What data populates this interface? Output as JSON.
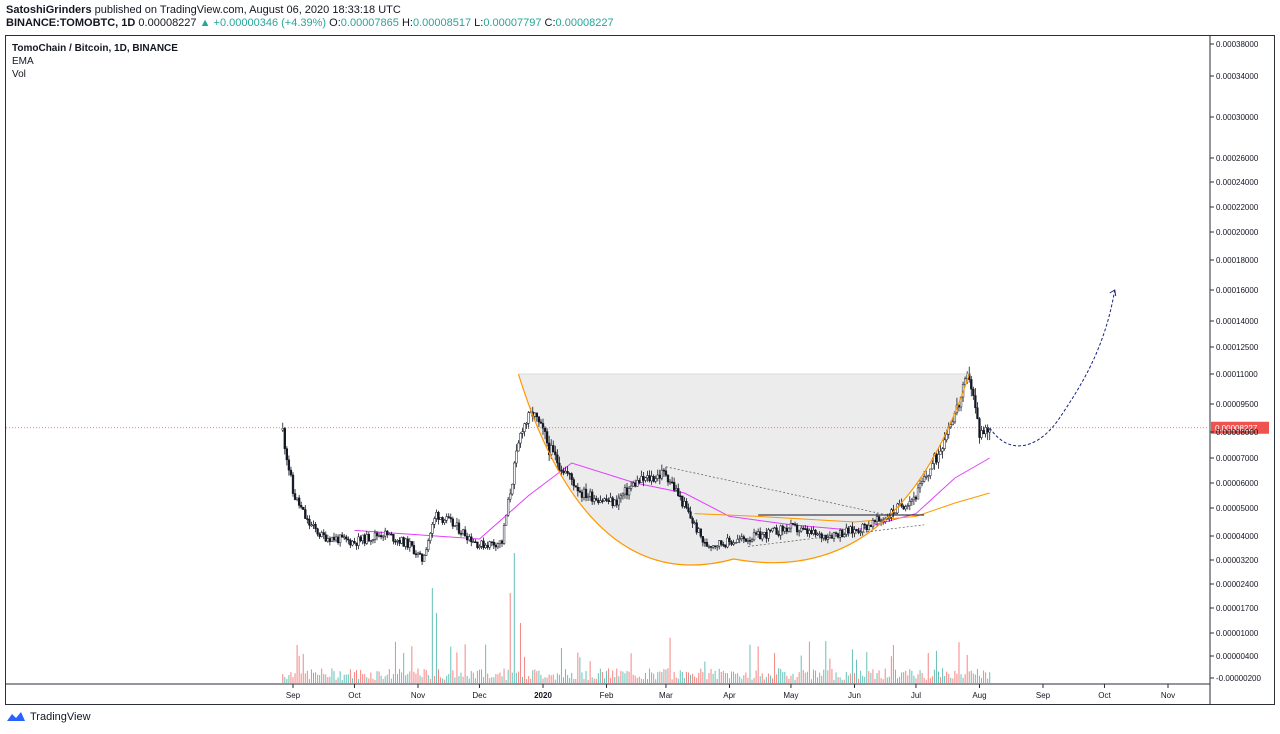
{
  "header": {
    "author": "SatoshiGrinders",
    "published_text": "published on TradingView.com, August 06, 2020 18:33:18 UTC",
    "symbol": "BINANCE:TOMOBTC, 1D",
    "last": "0.00008227",
    "change": "▲ +0.00000346 (+4.39%)",
    "o_label": "O:",
    "o": "0.00007865",
    "h_label": "H:",
    "h": "0.00008517",
    "l_label": "L:",
    "l": "0.00007797",
    "c_label": "C:",
    "c": "0.00008227"
  },
  "legend": {
    "title": "TomoChain / Bitcoin, 1D, BINANCE",
    "ema": "EMA",
    "vol": "Vol"
  },
  "brand": {
    "name": "TradingView"
  },
  "colors": {
    "up": "#26a69a",
    "down": "#ef5350",
    "candle": "#131722",
    "ema_fast": "#e040fb",
    "ema_slow": "#ff9800",
    "cup": "#ff9800",
    "projection": "#1a237e",
    "price_line": "#ef5350",
    "shade": "#ececec"
  },
  "chart_data": {
    "type": "candlestick",
    "symbol": "TOMOBTC",
    "timeframe": "1D",
    "log_scale": true,
    "current_price": 8.227e-05,
    "current_price_label": "0.00008227",
    "y_ticks": [
      "0.00038000",
      "0.00034000",
      "0.00030000",
      "0.00026000",
      "0.00024000",
      "0.00022000",
      "0.00020000",
      "0.00018000",
      "0.00016000",
      "0.00014000",
      "0.00012500",
      "0.00011000",
      "0.00009500",
      "0.00008000",
      "0.00007000",
      "0.00006000",
      "0.00005000",
      "0.00004000",
      "0.00003200",
      "0.00002400",
      "0.00001700",
      "0.00001000",
      "0.00000400",
      "-0.00000200"
    ],
    "x_ticks": [
      "Sep",
      "Oct",
      "Nov",
      "Dec",
      "2020",
      "Feb",
      "Mar",
      "Apr",
      "May",
      "Jun",
      "Jul",
      "Aug",
      "Sep",
      "Oct",
      "Nov"
    ],
    "price_path": [
      [
        "2019-08-27",
        8.1e-05
      ],
      [
        "2019-09-01",
        5.6e-05
      ],
      [
        "2019-09-08",
        4.5e-05
      ],
      [
        "2019-09-15",
        4e-05
      ],
      [
        "2019-10-01",
        3.8e-05
      ],
      [
        "2019-10-15",
        4.1e-05
      ],
      [
        "2019-10-28",
        3.7e-05
      ],
      [
        "2019-11-03",
        3.2e-05
      ],
      [
        "2019-11-10",
        4.8e-05
      ],
      [
        "2019-11-20",
        4.3e-05
      ],
      [
        "2019-12-01",
        3.7e-05
      ],
      [
        "2019-12-12",
        3.8e-05
      ],
      [
        "2019-12-18",
        6.6e-05
      ],
      [
        "2019-12-22",
        8.3e-05
      ],
      [
        "2019-12-27",
        9e-05
      ],
      [
        "2020-01-05",
        7.2e-05
      ],
      [
        "2020-01-20",
        5.6e-05
      ],
      [
        "2020-02-05",
        5.2e-05
      ],
      [
        "2020-02-15",
        6e-05
      ],
      [
        "2020-03-01",
        6.4e-05
      ],
      [
        "2020-03-12",
        4.8e-05
      ],
      [
        "2020-03-20",
        3.7e-05
      ],
      [
        "2020-04-01",
        3.8e-05
      ],
      [
        "2020-04-15",
        4e-05
      ],
      [
        "2020-05-01",
        4.3e-05
      ],
      [
        "2020-05-15",
        4e-05
      ],
      [
        "2020-06-01",
        4.2e-05
      ],
      [
        "2020-06-15",
        4.6e-05
      ],
      [
        "2020-07-01",
        5.5e-05
      ],
      [
        "2020-07-12",
        7.2e-05
      ],
      [
        "2020-07-22",
        9.5e-05
      ],
      [
        "2020-07-27",
        0.00011
      ],
      [
        "2020-08-01",
        8e-05
      ],
      [
        "2020-08-06",
        8.23e-05
      ]
    ],
    "ema_fast": [
      [
        "2019-10-01",
        4.2e-05
      ],
      [
        "2019-12-01",
        3.9e-05
      ],
      [
        "2019-12-25",
        5.5e-05
      ],
      [
        "2020-01-15",
        6.8e-05
      ],
      [
        "2020-02-15",
        6e-05
      ],
      [
        "2020-03-10",
        5.6e-05
      ],
      [
        "2020-04-01",
        4.7e-05
      ],
      [
        "2020-05-01",
        4.4e-05
      ],
      [
        "2020-06-01",
        4.2e-05
      ],
      [
        "2020-07-01",
        4.8e-05
      ],
      [
        "2020-07-20",
        6.2e-05
      ],
      [
        "2020-08-06",
        7e-05
      ]
    ],
    "ema_slow": [
      [
        "2020-03-15",
        4.8e-05
      ],
      [
        "2020-04-15",
        4.7e-05
      ],
      [
        "2020-06-01",
        4.5e-05
      ],
      [
        "2020-07-01",
        4.7e-05
      ],
      [
        "2020-07-20",
        5.2e-05
      ],
      [
        "2020-08-06",
        5.6e-05
      ]
    ],
    "annotations": {
      "cup_rim_price": 0.00011,
      "cup_from": "2019-12-20",
      "cup_to": "2020-07-27",
      "projection_target_price": 0.00016,
      "projection_target_date": "2020-10-06"
    }
  }
}
